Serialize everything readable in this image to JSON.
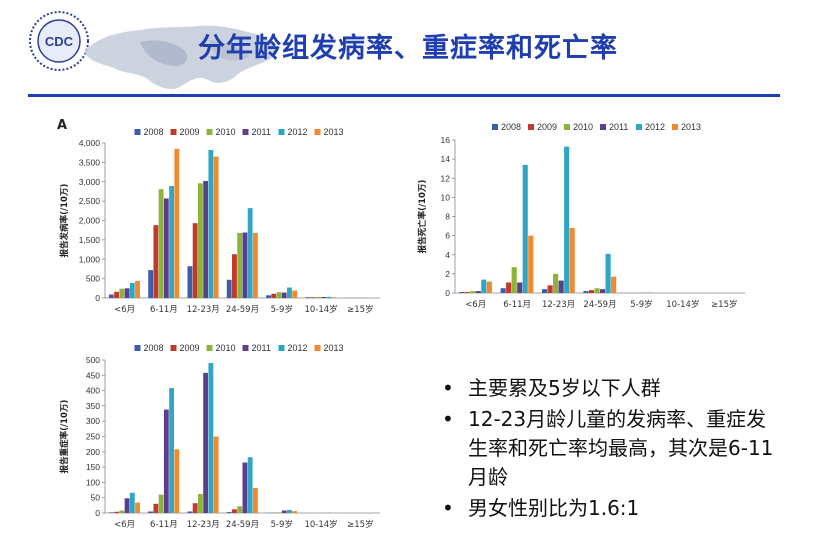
{
  "slide": {
    "title": "分年龄组发病率、重症率和死亡率",
    "logo_text": "CDC",
    "accent_color": "#1f3fb0"
  },
  "bullets": [
    "主要累及5岁以下人群",
    "12-23月龄儿童的发病率、重症发生率和死亡率均最高，其次是6-11月龄",
    "男女性别比为1.6:1"
  ],
  "bullet_symbol": "•",
  "chart_data": [
    {
      "panel_label": "A",
      "type": "bar",
      "ylabel": "报告发病率(/10万)",
      "ylim": [
        0,
        4000
      ],
      "yticks": [
        "0",
        "500",
        "1,000",
        "1,500",
        "2,000",
        "2,500",
        "3,000",
        "3,500",
        "4,000"
      ],
      "ytick_values": [
        0,
        500,
        1000,
        1500,
        2000,
        2500,
        3000,
        3500,
        4000
      ],
      "categories": [
        "<6月",
        "6-11月",
        "12-23月",
        "24-59月",
        "5-9岁",
        "10-14岁",
        "≥15岁"
      ],
      "legend_position": "top",
      "series": [
        {
          "name": "2008",
          "color": "#3b5ea8",
          "values": [
            90,
            720,
            820,
            470,
            70,
            20,
            5
          ]
        },
        {
          "name": "2009",
          "color": "#c0392b",
          "values": [
            160,
            1880,
            1930,
            1130,
            110,
            20,
            5
          ]
        },
        {
          "name": "2010",
          "color": "#8db33a",
          "values": [
            240,
            2810,
            2960,
            1680,
            150,
            25,
            5
          ]
        },
        {
          "name": "2011",
          "color": "#5b3f8c",
          "values": [
            250,
            2570,
            3020,
            1690,
            140,
            25,
            5
          ]
        },
        {
          "name": "2012",
          "color": "#2fa7c4",
          "values": [
            390,
            2890,
            3820,
            2320,
            270,
            30,
            5
          ]
        },
        {
          "name": "2013",
          "color": "#f08a2e",
          "values": [
            440,
            3850,
            3650,
            1680,
            190,
            20,
            5
          ]
        }
      ]
    },
    {
      "panel_label": "",
      "type": "bar",
      "ylabel": "报告死亡率(/10万)",
      "ylim": [
        0,
        16
      ],
      "yticks": [
        "0",
        "2",
        "4",
        "6",
        "8",
        "10",
        "12",
        "14",
        "16"
      ],
      "ytick_values": [
        0,
        2,
        4,
        6,
        8,
        10,
        12,
        14,
        16
      ],
      "categories": [
        "<6月",
        "6-11月",
        "12-23月",
        "24-59月",
        "5-9岁",
        "10-14岁",
        "≥15岁"
      ],
      "legend_position": "top",
      "series": [
        {
          "name": "2008",
          "color": "#3b5ea8",
          "values": [
            0.1,
            0.5,
            0.4,
            0.2,
            0.01,
            0,
            0
          ]
        },
        {
          "name": "2009",
          "color": "#c0392b",
          "values": [
            0.1,
            1.1,
            0.8,
            0.3,
            0.01,
            0,
            0
          ]
        },
        {
          "name": "2010",
          "color": "#8db33a",
          "values": [
            0.2,
            2.7,
            2.0,
            0.5,
            0.02,
            0,
            0
          ]
        },
        {
          "name": "2011",
          "color": "#5b3f8c",
          "values": [
            0.2,
            1.1,
            1.3,
            0.4,
            0.02,
            0,
            0
          ]
        },
        {
          "name": "2012",
          "color": "#2fa7c4",
          "values": [
            1.4,
            13.4,
            15.3,
            4.1,
            0.05,
            0,
            0
          ]
        },
        {
          "name": "2013",
          "color": "#f08a2e",
          "values": [
            1.2,
            6.0,
            6.8,
            1.7,
            0.03,
            0,
            0
          ]
        }
      ]
    },
    {
      "panel_label": "",
      "type": "bar",
      "ylabel": "报告重症率(/10万)",
      "ylim": [
        0,
        500
      ],
      "yticks": [
        "0",
        "50",
        "100",
        "150",
        "200",
        "250",
        "300",
        "350",
        "400",
        "450",
        "500"
      ],
      "ytick_values": [
        0,
        50,
        100,
        150,
        200,
        250,
        300,
        350,
        400,
        450,
        500
      ],
      "categories": [
        "<6月",
        "6-11月",
        "12-23月",
        "24-59月",
        "5-9岁",
        "10-14岁",
        "≥15岁"
      ],
      "legend_position": "top",
      "series": [
        {
          "name": "2008",
          "color": "#3b5ea8",
          "values": [
            2,
            5,
            5,
            3,
            0.5,
            0,
            0
          ]
        },
        {
          "name": "2009",
          "color": "#c0392b",
          "values": [
            4,
            30,
            32,
            12,
            1,
            0,
            0
          ]
        },
        {
          "name": "2010",
          "color": "#8db33a",
          "values": [
            8,
            60,
            62,
            22,
            2,
            0,
            0
          ]
        },
        {
          "name": "2011",
          "color": "#5b3f8c",
          "values": [
            48,
            338,
            458,
            165,
            8,
            0,
            0
          ]
        },
        {
          "name": "2012",
          "color": "#2fa7c4",
          "values": [
            66,
            408,
            490,
            182,
            10,
            1,
            0
          ]
        },
        {
          "name": "2013",
          "color": "#f08a2e",
          "values": [
            34,
            208,
            250,
            82,
            6,
            0,
            0
          ]
        }
      ]
    }
  ]
}
